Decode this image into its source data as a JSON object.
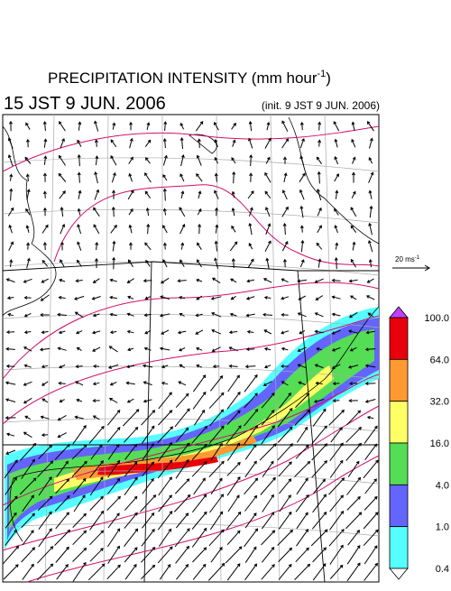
{
  "header": {
    "title": "PRECIPITATION INTENSITY (mm hour",
    "title_superscript": "-1",
    "title_close": ")",
    "valid_time": "15 JST 9 JUN. 2006",
    "init_time": "(init. 9 JST 9 JUN. 2006)"
  },
  "wind_scale": {
    "label": "20 ms",
    "label_superscript": "-1"
  },
  "legend": {
    "levels": [
      "100.0",
      "64.0",
      "32.0",
      "16.0",
      "4.0",
      "1.0",
      "0.4"
    ],
    "colors": [
      "#e8000b",
      "#ff9a33",
      "#ffff66",
      "#55dd55",
      "#6464ff",
      "#55ffff"
    ],
    "over_color": "#c040ff",
    "under_color": "#ffffff"
  }
}
